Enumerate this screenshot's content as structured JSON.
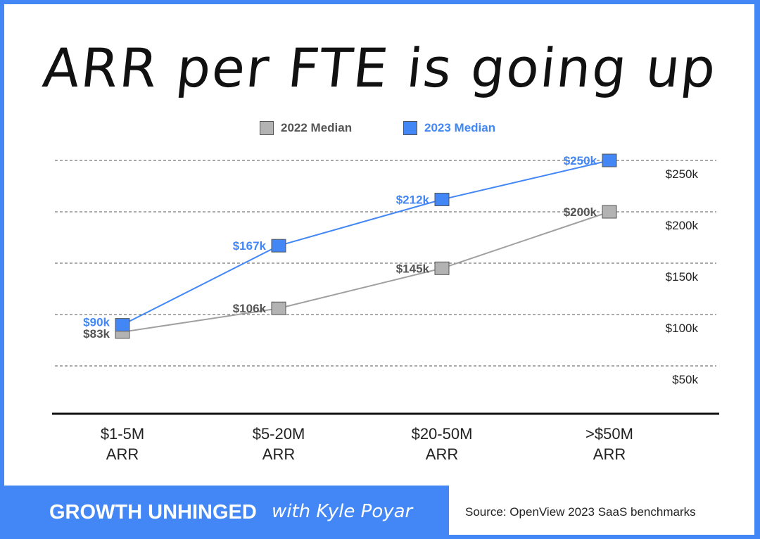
{
  "chart_data": {
    "type": "line",
    "title": "ARR per FTE is going up",
    "categories": [
      "$1-5M ARR",
      "$5-20M ARR",
      "$20-50M ARR",
      ">$50M ARR"
    ],
    "category_lines": [
      [
        "$1-5M",
        "ARR"
      ],
      [
        "$5-20M",
        "ARR"
      ],
      [
        "$20-50M",
        "ARR"
      ],
      [
        ">$50M",
        "ARR"
      ]
    ],
    "series": [
      {
        "name": "2022 Median",
        "color": "#b3b3b3",
        "line_color": "#a0a0a0",
        "label_color": "#555555",
        "values": [
          83,
          106,
          145,
          200
        ],
        "labels": [
          "$83k",
          "$106k",
          "$145k",
          "$200k"
        ]
      },
      {
        "name": "2023 Median",
        "color": "#4287f5",
        "line_color": "#4287f5",
        "label_color": "#4287f5",
        "values": [
          90,
          167,
          212,
          250
        ],
        "labels": [
          "$90k",
          "$167k",
          "$212k",
          "$250k"
        ]
      }
    ],
    "y_ticks": [
      250,
      200,
      150,
      100,
      50
    ],
    "y_tick_labels": [
      "$250k",
      "$200k",
      "$150k",
      "$100k",
      "$50k"
    ],
    "y_unit": "thousands USD",
    "grid": true,
    "grid_style": "dashed",
    "legend_placement": "top-center"
  },
  "footer": {
    "brand": "GROWTH UNHINGED",
    "brand_suffix": "with Kyle Poyar",
    "source": "Source: OpenView 2023 SaaS benchmarks"
  },
  "colors": {
    "accent": "#4287f5",
    "gray": "#b3b3b3"
  }
}
